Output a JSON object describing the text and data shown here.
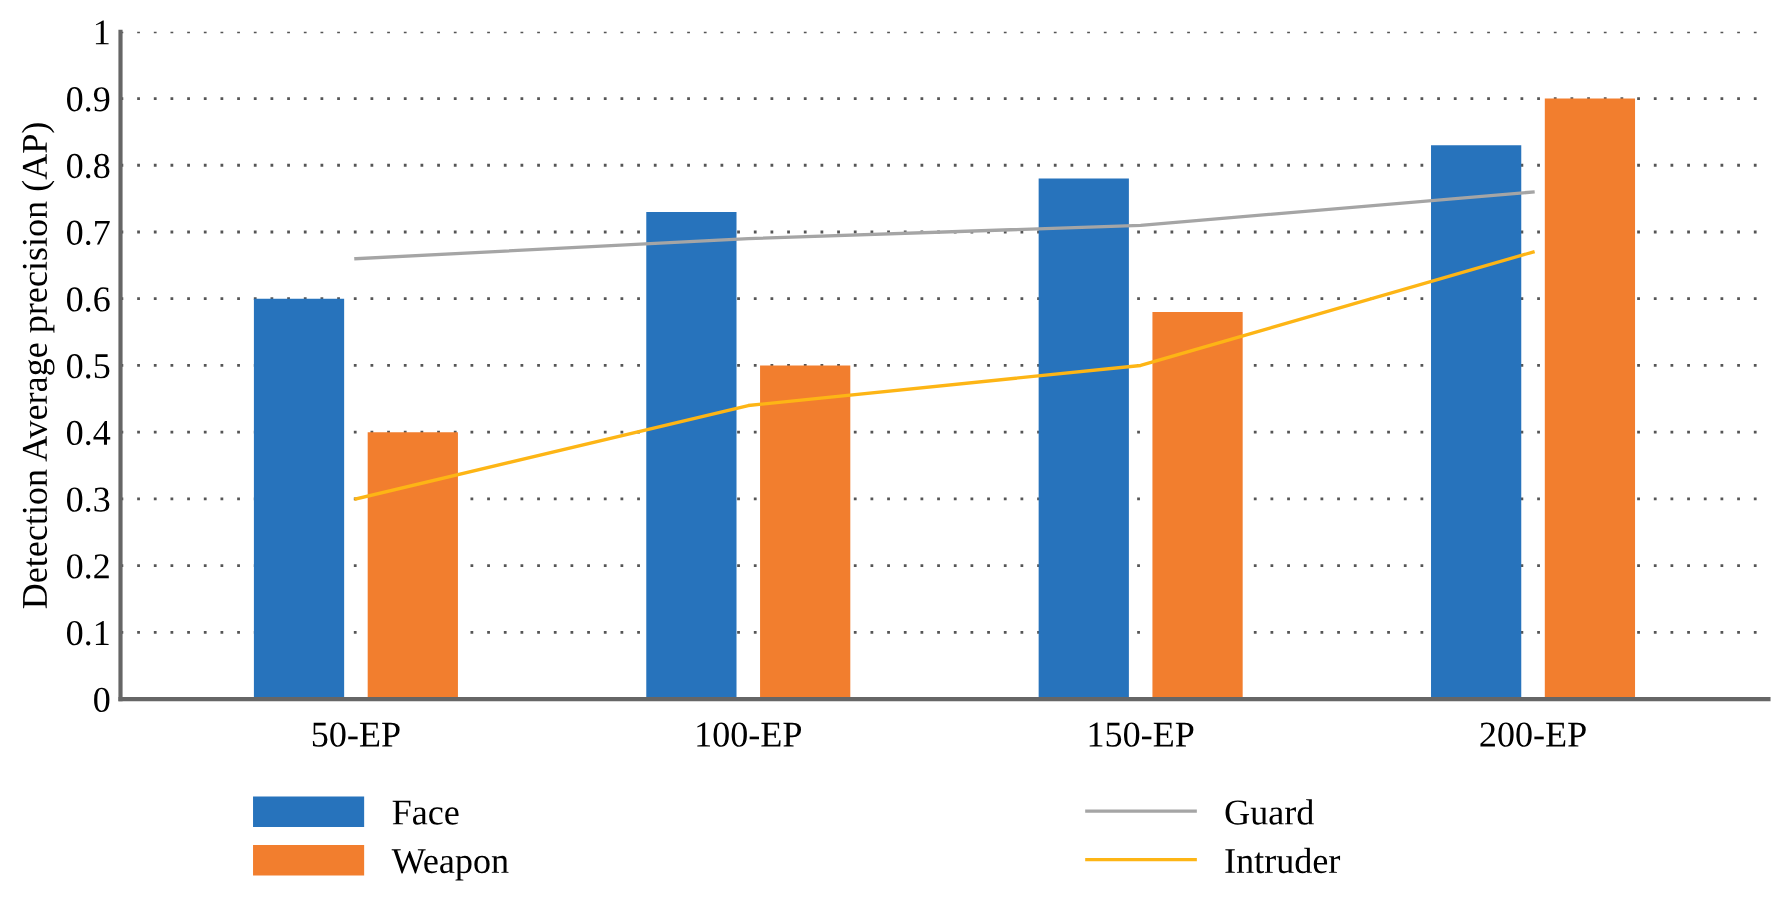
{
  "chart_data": {
    "type": "bar",
    "ylabel": "Detection Average precision (AP)",
    "categories": [
      "50-EP",
      "100-EP",
      "150-EP",
      "200-EP"
    ],
    "series": [
      {
        "name": "Face",
        "color": "#2773bc",
        "values": [
          0.6,
          0.73,
          0.78,
          0.83
        ]
      },
      {
        "name": "Weapon",
        "color": "#f27e2e",
        "values": [
          0.4,
          0.5,
          0.58,
          0.9
        ]
      },
      {
        "name": "Guard",
        "type": "line",
        "color": "#a5a5a5",
        "values": [
          0.66,
          0.69,
          0.71,
          0.76
        ]
      },
      {
        "name": "Intruder",
        "type": "line",
        "color": "#fdb515",
        "values": [
          0.3,
          0.44,
          0.5,
          0.67
        ]
      }
    ],
    "ylim": [
      0,
      1
    ],
    "yticks": [
      0,
      0.1,
      0.2,
      0.3,
      0.4,
      0.5,
      0.6,
      0.7,
      0.8,
      0.9,
      1
    ],
    "grid": "y",
    "legend": "bottom"
  }
}
